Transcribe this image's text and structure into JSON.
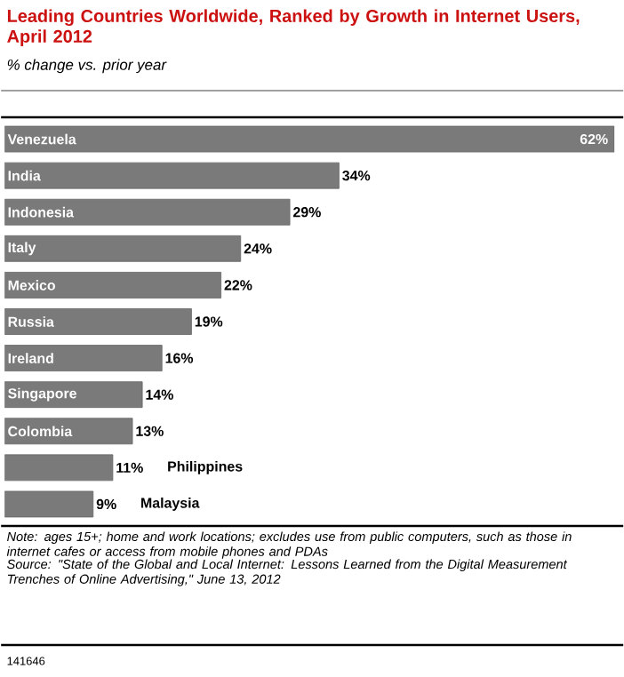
{
  "chart_data": {
    "type": "bar",
    "orientation": "horizontal",
    "title": "Leading Countries Worldwide, Ranked by Growth in Internet Users, April 2012",
    "subtitle": "% change vs. prior year",
    "categories": [
      "Venezuela",
      "India",
      "Indonesia",
      "Italy",
      "Mexico",
      "Russia",
      "Ireland",
      "Singapore",
      "Colombia",
      "Philippines",
      "Malaysia"
    ],
    "values": [
      62,
      34,
      29,
      24,
      22,
      19,
      16,
      14,
      13,
      11,
      9
    ],
    "value_labels": [
      "62%",
      "34%",
      "29%",
      "24%",
      "22%",
      "19%",
      "16%",
      "14%",
      "13%",
      "11%",
      "9%"
    ],
    "color": "#7a7a7a",
    "annotations": [
      "Note: ages 15+; home and work locations; excludes use from public computers, such as those in internet cafes or access from mobile phones and PDAs",
      "Source: \"State of the Global and Local Internet: Lessons Learned from the Digital Measurement Trenches of Online Advertising,\" June 13, 2012",
      "141646"
    ]
  }
}
